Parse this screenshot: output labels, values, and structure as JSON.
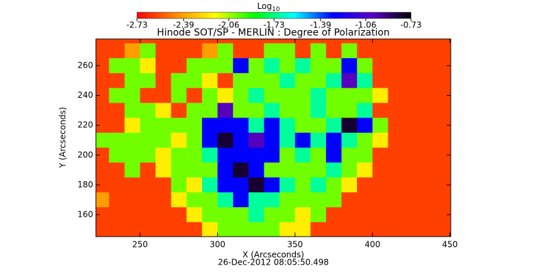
{
  "chart_data": {
    "type": "heatmap",
    "title": "Hinode SOT/SP - MERLIN : Degree of Polarization",
    "xlabel": "X (Arcseconds)",
    "ylabel": "Y (Arcseconds)",
    "footer": "26-Dec-2012 08:05:50.498",
    "colorbar_label": {
      "base": "Log",
      "sub": "10"
    },
    "colorbar_ticks": [
      -2.73,
      -2.39,
      -2.06,
      -1.73,
      -1.39,
      -1.06,
      -0.73
    ],
    "zlim": [
      -2.73,
      -0.73
    ],
    "colorscale": [
      "#ff0000",
      "#ff8c00",
      "#ffff00",
      "#00ff00",
      "#00ffff",
      "#0000ff",
      "#5a00c8",
      "#000000"
    ],
    "xlim": [
      221.5,
      450.5
    ],
    "ylim": [
      145.3,
      277.9
    ],
    "xticks": [
      250,
      300,
      350,
      400,
      450
    ],
    "yticks": [
      160,
      180,
      200,
      220,
      240,
      260
    ],
    "x": [
      225,
      235,
      245,
      255,
      265,
      275,
      285,
      295,
      305,
      315,
      325,
      335,
      345,
      355,
      365,
      375,
      385,
      395,
      405,
      415,
      425,
      435,
      445,
      455
    ],
    "y": [
      280,
      270,
      260,
      250,
      240,
      230,
      220,
      210,
      200,
      190,
      180,
      170,
      160,
      150
    ],
    "z": [
      [
        -2.6,
        -2.6,
        -2.6,
        -2.6,
        -2.6,
        -2.6,
        -2.6,
        -2.6,
        -2.6,
        -2.6,
        -2.6,
        -2.6,
        -2.6,
        -2.6,
        -2.6,
        -2.6,
        -2.6,
        -2.6,
        -2.6,
        -2.6,
        -2.6,
        -2.6,
        -2.6,
        -2.6
      ],
      [
        -2.6,
        -2.6,
        -2.4,
        -2.0,
        -2.6,
        -2.6,
        -2.6,
        -2.4,
        -2.0,
        -2.6,
        -2.6,
        -2.0,
        -2.0,
        -2.6,
        -2.0,
        -2.6,
        -2.0,
        -2.6,
        -2.6,
        -2.6,
        -2.6,
        -2.6,
        -2.6,
        -2.6
      ],
      [
        -2.6,
        -2.0,
        -2.0,
        -2.2,
        -2.6,
        -2.6,
        -2.0,
        -2.0,
        -2.0,
        -1.3,
        -2.0,
        -1.7,
        -2.0,
        -1.7,
        -2.0,
        -2.0,
        -1.3,
        -2.0,
        -2.6,
        -2.6,
        -2.6,
        -2.6,
        -2.6,
        -2.6
      ],
      [
        -2.6,
        -2.6,
        -2.0,
        -2.0,
        -2.6,
        -2.0,
        -2.0,
        -2.2,
        -2.6,
        -2.0,
        -2.0,
        -2.0,
        -1.7,
        -2.0,
        -2.0,
        -1.7,
        -1.0,
        -1.7,
        -2.6,
        -2.6,
        -2.6,
        -2.6,
        -2.6,
        -2.6
      ],
      [
        -2.6,
        -2.0,
        -2.0,
        -2.6,
        -2.6,
        -2.0,
        -2.6,
        -2.0,
        -2.2,
        -2.0,
        -1.7,
        -2.0,
        -2.0,
        -2.0,
        -1.7,
        -2.0,
        -2.0,
        -2.0,
        -2.2,
        -2.6,
        -2.6,
        -2.6,
        -2.6,
        -2.6
      ],
      [
        -2.6,
        -2.6,
        -2.0,
        -2.0,
        -2.2,
        -2.6,
        -2.0,
        -2.0,
        -1.0,
        -2.0,
        -2.0,
        -1.7,
        -2.0,
        -2.0,
        -1.7,
        -2.0,
        -2.0,
        -1.7,
        -2.6,
        -2.6,
        -2.6,
        -2.6,
        -2.6,
        -2.6
      ],
      [
        -2.6,
        -2.6,
        -2.2,
        -2.0,
        -2.0,
        -2.0,
        -2.0,
        -1.3,
        -1.3,
        -1.3,
        -1.7,
        -1.3,
        -1.7,
        -2.0,
        -2.0,
        -1.7,
        -0.8,
        -1.3,
        -2.0,
        -2.6,
        -2.6,
        -2.6,
        -2.6,
        -2.6
      ],
      [
        -2.0,
        -2.0,
        -2.0,
        -2.0,
        -2.0,
        -2.2,
        -2.0,
        -1.3,
        -0.8,
        -1.3,
        -1.0,
        -1.3,
        -1.7,
        -1.3,
        -1.7,
        -1.3,
        -1.7,
        -2.0,
        -2.2,
        -2.6,
        -2.6,
        -2.6,
        -2.6,
        -2.6
      ],
      [
        -2.6,
        -2.0,
        -2.0,
        -2.0,
        -2.2,
        -2.0,
        -2.0,
        -1.7,
        -1.3,
        -1.3,
        -1.3,
        -1.3,
        -2.0,
        -1.7,
        -2.0,
        -1.3,
        -2.0,
        -2.0,
        -2.6,
        -2.6,
        -2.6,
        -2.6,
        -2.6,
        -2.6
      ],
      [
        -2.6,
        -2.6,
        -2.0,
        -2.6,
        -2.2,
        -2.0,
        -2.0,
        -2.0,
        -1.3,
        -0.8,
        -1.3,
        -2.0,
        -2.0,
        -2.0,
        -2.0,
        -1.7,
        -2.0,
        -2.2,
        -2.6,
        -2.6,
        -2.6,
        -2.6,
        -2.6,
        -2.6
      ],
      [
        -2.6,
        -2.6,
        -2.6,
        -2.6,
        -2.6,
        -2.0,
        -2.2,
        -1.7,
        -1.3,
        -1.3,
        -0.8,
        -1.3,
        -1.7,
        -2.0,
        -1.7,
        -2.0,
        -2.2,
        -2.6,
        -2.6,
        -2.6,
        -2.6,
        -2.6,
        -2.6,
        -2.6
      ],
      [
        -2.4,
        -2.6,
        -2.6,
        -2.6,
        -2.6,
        -2.2,
        -2.0,
        -2.0,
        -1.7,
        -1.3,
        -1.7,
        -1.7,
        -2.0,
        -2.0,
        -2.0,
        -2.0,
        -2.6,
        -2.6,
        -2.6,
        -2.6,
        -2.6,
        -2.6,
        -2.6,
        -2.6
      ],
      [
        -2.6,
        -2.6,
        -2.6,
        -2.6,
        -2.6,
        -2.6,
        -2.2,
        -2.0,
        -2.0,
        -2.0,
        -1.7,
        -2.0,
        -2.0,
        -2.2,
        -2.0,
        -2.6,
        -2.6,
        -2.6,
        -2.6,
        -2.6,
        -2.6,
        -2.6,
        -2.6,
        -2.6
      ],
      [
        -2.6,
        -2.6,
        -2.6,
        -2.6,
        -2.6,
        -2.6,
        -2.6,
        -2.2,
        -2.0,
        -2.0,
        -2.0,
        -2.0,
        -2.2,
        -2.2,
        -2.6,
        -2.6,
        -2.6,
        -2.6,
        -2.6,
        -2.6,
        -2.6,
        -2.6,
        -2.6,
        -2.6
      ]
    ]
  }
}
